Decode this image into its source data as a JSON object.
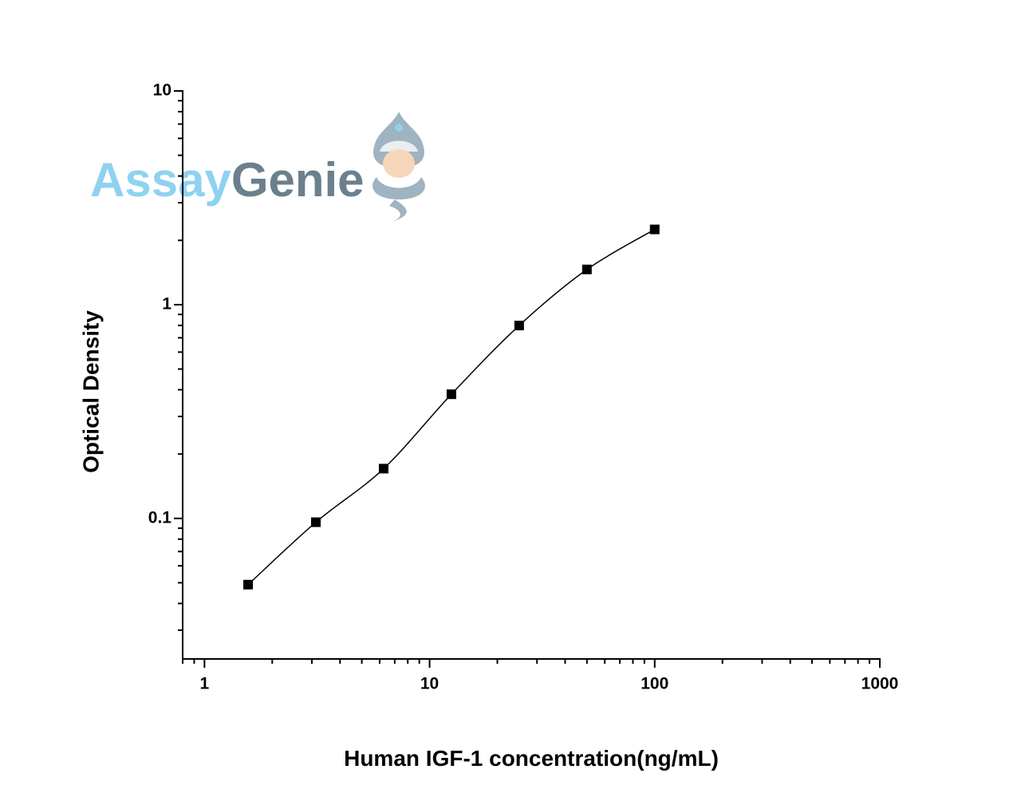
{
  "chart_data": {
    "type": "scatter",
    "x_label": "Human IGF-1 concentration(ng/mL)",
    "y_label": "Optical Density",
    "x": [
      1.5625,
      3.125,
      6.25,
      12.5,
      25,
      50,
      100
    ],
    "values": [
      0.049,
      0.096,
      0.171,
      0.381,
      0.799,
      1.462,
      2.25
    ],
    "color": "#000000",
    "marker": "square",
    "line": true,
    "xscale": "log",
    "yscale": "log",
    "xlim": [
      0.8,
      1000
    ],
    "ylim": [
      0.022,
      10
    ],
    "xticks": [
      1,
      10,
      100,
      1000
    ],
    "yticks": [
      0.1,
      1,
      10
    ]
  },
  "logo": {
    "part1": "Assay",
    "part2": "Genie"
  }
}
